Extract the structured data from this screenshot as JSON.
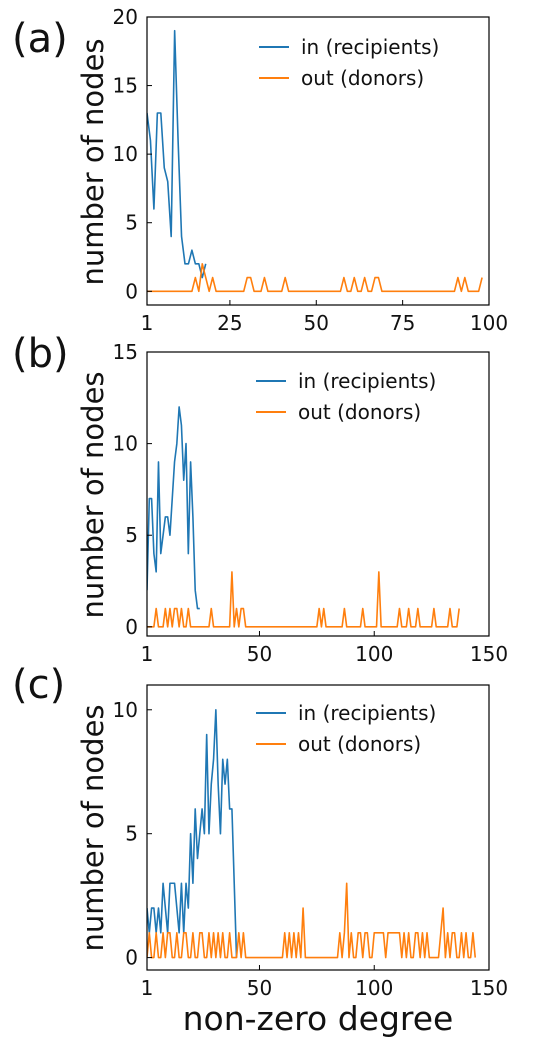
{
  "figure": {
    "xlabel": "non-zero degree",
    "ylabel": "number of nodes"
  },
  "chart_data": [
    {
      "type": "line",
      "panel_label": "(a)",
      "xlim": [
        1,
        100
      ],
      "ylim": [
        -1,
        20
      ],
      "xticks": [
        1,
        25,
        50,
        75,
        100
      ],
      "yticks": [
        0,
        5,
        10,
        15,
        20
      ],
      "grid": false,
      "legend_placement": "top-right",
      "series": [
        {
          "name": "in (recipients)",
          "color": "#1f77b4",
          "x": [
            1,
            2,
            3,
            4,
            5,
            6,
            7,
            8,
            9,
            10,
            11,
            12,
            13,
            14,
            15,
            16,
            17,
            18
          ],
          "y": [
            13,
            11,
            6,
            13,
            13,
            9,
            8,
            4,
            19,
            11,
            4,
            2,
            2,
            3,
            2,
            2,
            1,
            2
          ]
        },
        {
          "name": "out (donors)",
          "color": "#ff7f0e",
          "x": [
            1,
            14,
            15,
            16,
            17,
            18,
            19,
            20,
            21,
            29,
            30,
            31,
            32,
            33,
            34,
            35,
            36,
            37,
            40,
            41,
            42,
            57,
            58,
            59,
            60,
            61,
            62,
            63,
            64,
            65,
            66,
            67,
            68,
            69,
            90,
            91,
            92,
            93,
            94,
            97,
            98
          ],
          "y": [
            0,
            0,
            1,
            0,
            2,
            1,
            0,
            1,
            0,
            0,
            1,
            1,
            0,
            0,
            0,
            1,
            0,
            0,
            0,
            1,
            0,
            0,
            1,
            0,
            0,
            1,
            0,
            0,
            1,
            0,
            0,
            1,
            1,
            0,
            0,
            1,
            0,
            1,
            0,
            0,
            1
          ]
        }
      ]
    },
    {
      "type": "line",
      "panel_label": "(b)",
      "xlim": [
        1,
        150
      ],
      "ylim": [
        -0.5,
        15
      ],
      "xticks": [
        1,
        50,
        100,
        150
      ],
      "yticks": [
        0,
        5,
        10,
        15
      ],
      "grid": false,
      "legend_placement": "top-right",
      "series": [
        {
          "name": "in (recipients)",
          "color": "#1f77b4",
          "x": [
            1,
            2,
            3,
            4,
            5,
            6,
            7,
            8,
            9,
            10,
            11,
            12,
            13,
            14,
            15,
            16,
            17,
            18,
            19,
            20,
            21,
            22,
            23,
            24
          ],
          "y": [
            2,
            7,
            7,
            4,
            3,
            9,
            4,
            5,
            6,
            6,
            5,
            7,
            9,
            10,
            12,
            11,
            8,
            10,
            4,
            9,
            6,
            2,
            1,
            1
          ]
        },
        {
          "name": "out (donors)",
          "color": "#ff7f0e",
          "x": [
            1,
            4,
            5,
            6,
            8,
            9,
            10,
            11,
            12,
            13,
            14,
            15,
            16,
            17,
            18,
            19,
            20,
            28,
            29,
            30,
            31,
            37,
            38,
            39,
            40,
            41,
            42,
            43,
            44,
            45,
            75,
            76,
            77,
            78,
            79,
            86,
            87,
            88,
            94,
            95,
            96,
            101,
            102,
            103,
            110,
            111,
            112,
            114,
            115,
            116,
            118,
            119,
            120,
            125,
            126,
            127,
            132,
            133,
            134,
            136,
            137
          ],
          "y": [
            0,
            0,
            1,
            0,
            0,
            1,
            0,
            1,
            0,
            1,
            1,
            0,
            1,
            0,
            0,
            1,
            0,
            0,
            1,
            0,
            0,
            0,
            3,
            0,
            1,
            0,
            1,
            1,
            0,
            0,
            0,
            1,
            0,
            1,
            0,
            0,
            1,
            0,
            0,
            1,
            0,
            0,
            3,
            0,
            0,
            1,
            0,
            0,
            1,
            0,
            0,
            1,
            0,
            0,
            1,
            0,
            0,
            1,
            0,
            0,
            1
          ]
        }
      ]
    },
    {
      "type": "line",
      "panel_label": "(c)",
      "xlim": [
        1,
        150
      ],
      "ylim": [
        -0.5,
        11
      ],
      "xticks": [
        1,
        50,
        100,
        150
      ],
      "yticks": [
        0,
        5,
        10
      ],
      "grid": false,
      "legend_placement": "top-right",
      "series": [
        {
          "name": "in (recipients)",
          "color": "#1f77b4",
          "x": [
            1,
            2,
            3,
            4,
            5,
            6,
            7,
            8,
            9,
            10,
            11,
            12,
            13,
            14,
            15,
            16,
            17,
            18,
            19,
            20,
            21,
            22,
            23,
            24,
            25,
            26,
            27,
            28,
            29,
            30,
            31,
            32,
            33,
            34,
            35,
            36,
            37,
            38,
            39,
            40
          ],
          "y": [
            2,
            1,
            2,
            2,
            1,
            2,
            1,
            3,
            2,
            1,
            3,
            3,
            3,
            2,
            1,
            3,
            1,
            3,
            2,
            5,
            3,
            6,
            4,
            5,
            6,
            5,
            9,
            5,
            7,
            8,
            10,
            7,
            5,
            8,
            7,
            8,
            6,
            6,
            3,
            0
          ]
        },
        {
          "name": "out (donors)",
          "color": "#ff7f0e",
          "x": [
            1,
            2,
            3,
            4,
            5,
            6,
            7,
            8,
            9,
            10,
            11,
            12,
            13,
            14,
            15,
            16,
            17,
            18,
            19,
            20,
            21,
            22,
            23,
            24,
            25,
            26,
            27,
            28,
            29,
            30,
            31,
            32,
            33,
            34,
            35,
            36,
            37,
            38,
            39,
            40,
            41,
            42,
            43,
            44,
            45,
            46,
            60,
            61,
            62,
            63,
            64,
            65,
            66,
            67,
            68,
            69,
            70,
            71,
            84,
            85,
            86,
            87,
            88,
            89,
            90,
            91,
            92,
            93,
            94,
            95,
            96,
            97,
            98,
            99,
            100,
            101,
            102,
            103,
            104,
            105,
            106,
            107,
            108,
            109,
            110,
            111,
            112,
            113,
            114,
            115,
            116,
            117,
            118,
            119,
            120,
            121,
            122,
            123,
            124,
            125,
            128,
            129,
            130,
            131,
            132,
            133,
            134,
            135,
            136,
            137,
            138,
            139,
            140,
            141,
            142,
            143,
            144
          ],
          "y": [
            0,
            1,
            0,
            0,
            1,
            0,
            0,
            1,
            0,
            1,
            1,
            0,
            0,
            1,
            0,
            0,
            1,
            1,
            0,
            0,
            1,
            0,
            0,
            1,
            1,
            0,
            0,
            1,
            0,
            1,
            0,
            1,
            0,
            1,
            0,
            0,
            1,
            0,
            0,
            0,
            1,
            0,
            1,
            0,
            0,
            0,
            0,
            1,
            0,
            1,
            0,
            1,
            0,
            1,
            0,
            2,
            0,
            0,
            0,
            1,
            0,
            1,
            3,
            0,
            1,
            0,
            0,
            1,
            1,
            0,
            1,
            1,
            0,
            0,
            1,
            1,
            1,
            1,
            1,
            0,
            1,
            1,
            1,
            1,
            1,
            1,
            0,
            1,
            0,
            1,
            0,
            0,
            1,
            1,
            0,
            1,
            0,
            1,
            0,
            0,
            0,
            1,
            2,
            0,
            1,
            0,
            1,
            1,
            0,
            0,
            1,
            0,
            1,
            0,
            0,
            1,
            0
          ]
        }
      ]
    }
  ]
}
